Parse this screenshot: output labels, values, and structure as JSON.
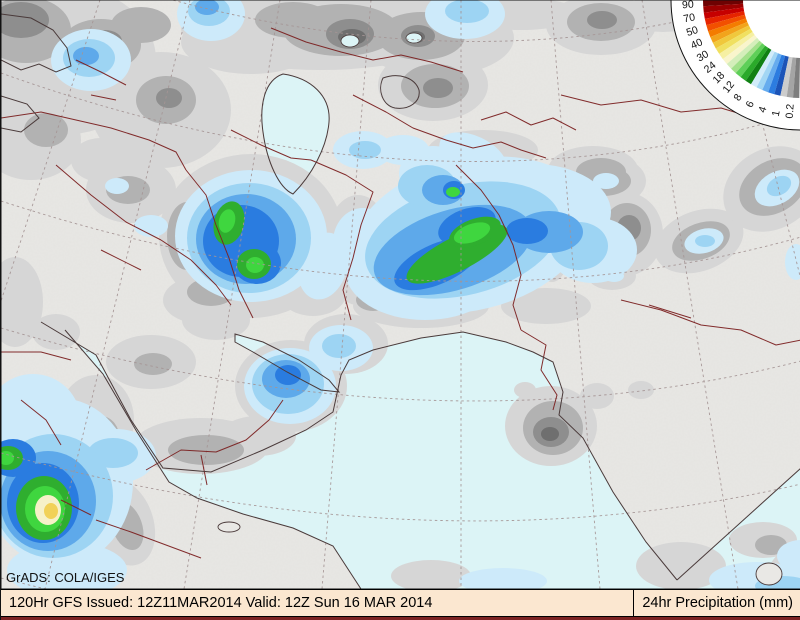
{
  "credit": {
    "label": "GrADS: COLA/IGES"
  },
  "footer": {
    "left_text": "120Hr GFS Issued: 12Z11MAR2014 Valid: 12Z Sun 16 MAR 2014",
    "right_text": "24hr Precipitation (mm)"
  },
  "legend": {
    "title": "precipitation-scale-fan",
    "labels_high_to_low": [
      "90",
      "70",
      "50",
      "40",
      "30",
      "24",
      "18",
      "12",
      "8",
      "6",
      "4",
      "1",
      "0.2"
    ],
    "band_colors_high_to_low": [
      "#6e0202",
      "#9c0000",
      "#c60000",
      "#e62400",
      "#f25000",
      "#f47c00",
      "#f2a41c",
      "#f0c83c",
      "#f0e060",
      "#f6f0a2",
      "#f9f5cc",
      "#d4eeba",
      "#a2e08a",
      "#5ecf58",
      "#2aaa2a",
      "#108014",
      "#d2ecfa",
      "#a2d6f4",
      "#66acee",
      "#2c7ce0",
      "#1c54b8",
      "#cccccc",
      "#a4a4a4",
      "#7e7e7e"
    ]
  },
  "colors": {
    "ocean": "#dcf4f6",
    "land": "#e9e8e5",
    "footer_bg": "#fbe7d0",
    "frame": "#7c2222",
    "graticule": "#a59595",
    "country_border": "#7c2222",
    "coastline": "#4a3a3a"
  }
}
